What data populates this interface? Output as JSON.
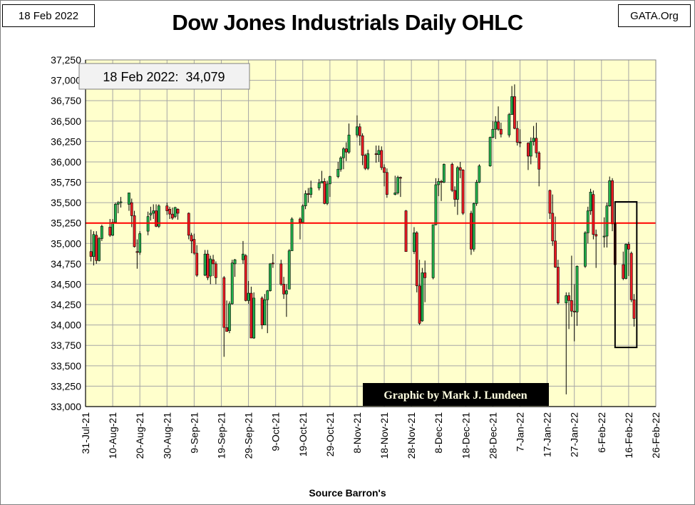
{
  "header": {
    "date_label": "18 Feb 2022",
    "site_label": "GATA.Org",
    "title": "Dow Jones Industrials Daily OHLC"
  },
  "annotation": {
    "close_label": "18 Feb 2022:  34,079",
    "credit_label": "Graphic by Mark J. Lundeen",
    "source_label": "Source  Barron's"
  },
  "colors": {
    "plot_background": "#ffffcc",
    "grid": "#a6a6a6",
    "up_candle": "#22b14c",
    "down_candle": "#ed1c24",
    "reference_line": "#ff0000",
    "credit_background": "#000000",
    "credit_text": "#ffffe0"
  },
  "chart_data": {
    "type": "ohlc-candlestick",
    "title": "Dow Jones Industrials Daily OHLC",
    "xlabel": "",
    "ylabel": "",
    "ylim": [
      33000,
      37250
    ],
    "yticks": [
      33000,
      33250,
      33500,
      33750,
      34000,
      34250,
      34500,
      34750,
      35000,
      35250,
      35500,
      35750,
      36000,
      36250,
      36500,
      36750,
      37000,
      37250
    ],
    "ytick_labels": [
      "33,000",
      "33,250",
      "33,500",
      "33,750",
      "34,000",
      "34,250",
      "34,500",
      "34,750",
      "35,000",
      "35,250",
      "35,500",
      "35,750",
      "36,000",
      "36,250",
      "36,500",
      "36,750",
      "37,000",
      "37,250"
    ],
    "xlim": [
      "2021-07-31",
      "2022-02-26"
    ],
    "xtick_labels": [
      "31-Jul-21",
      "10-Aug-21",
      "20-Aug-21",
      "30-Aug-21",
      "9-Sep-21",
      "19-Sep-21",
      "29-Sep-21",
      "9-Oct-21",
      "19-Oct-21",
      "29-Oct-21",
      "8-Nov-21",
      "18-Nov-21",
      "28-Nov-21",
      "8-Dec-21",
      "18-Dec-21",
      "28-Dec-21",
      "7-Jan-22",
      "17-Jan-22",
      "27-Jan-22",
      "6-Feb-22",
      "16-Feb-22",
      "26-Feb-22"
    ],
    "grid": true,
    "reference_line": 35250,
    "highlight_box": {
      "from": "2022-02-11",
      "to": "2022-02-19",
      "low": 33725,
      "high": 35510
    },
    "candles": [
      {
        "d": "2021-08-02",
        "o": 34900,
        "h": 35170,
        "l": 34780,
        "c": 34840
      },
      {
        "d": "2021-08-03",
        "o": 34840,
        "h": 35150,
        "l": 34730,
        "c": 35110
      },
      {
        "d": "2021-08-04",
        "o": 35100,
        "h": 35150,
        "l": 34750,
        "c": 34790
      },
      {
        "d": "2021-08-05",
        "o": 34790,
        "h": 35080,
        "l": 34780,
        "c": 35060
      },
      {
        "d": "2021-08-06",
        "o": 35060,
        "h": 35230,
        "l": 35030,
        "c": 35210
      },
      {
        "d": "2021-08-09",
        "o": 35200,
        "h": 35300,
        "l": 35080,
        "c": 35100
      },
      {
        "d": "2021-08-10",
        "o": 35100,
        "h": 35300,
        "l": 35090,
        "c": 35260
      },
      {
        "d": "2021-08-11",
        "o": 35260,
        "h": 35500,
        "l": 35250,
        "c": 35480
      },
      {
        "d": "2021-08-12",
        "o": 35480,
        "h": 35520,
        "l": 35370,
        "c": 35500
      },
      {
        "d": "2021-08-13",
        "o": 35500,
        "h": 35570,
        "l": 35440,
        "c": 35510
      },
      {
        "d": "2021-08-16",
        "o": 35480,
        "h": 35620,
        "l": 35400,
        "c": 35620
      },
      {
        "d": "2021-08-17",
        "o": 35500,
        "h": 35550,
        "l": 35200,
        "c": 35340
      },
      {
        "d": "2021-08-18",
        "o": 35340,
        "h": 35400,
        "l": 34950,
        "c": 34960
      },
      {
        "d": "2021-08-19",
        "o": 34900,
        "h": 35050,
        "l": 34690,
        "c": 34890
      },
      {
        "d": "2021-08-20",
        "o": 34890,
        "h": 35150,
        "l": 34860,
        "c": 35120
      },
      {
        "d": "2021-08-23",
        "o": 35150,
        "h": 35390,
        "l": 35100,
        "c": 35330
      },
      {
        "d": "2021-08-24",
        "o": 35350,
        "h": 35450,
        "l": 35280,
        "c": 35370
      },
      {
        "d": "2021-08-25",
        "o": 35370,
        "h": 35480,
        "l": 35300,
        "c": 35400
      },
      {
        "d": "2021-08-26",
        "o": 35400,
        "h": 35480,
        "l": 35200,
        "c": 35210
      },
      {
        "d": "2021-08-27",
        "o": 35210,
        "h": 35480,
        "l": 35190,
        "c": 35460
      },
      {
        "d": "2021-08-30",
        "o": 35460,
        "h": 35500,
        "l": 35350,
        "c": 35400
      },
      {
        "d": "2021-08-31",
        "o": 35420,
        "h": 35450,
        "l": 35300,
        "c": 35360
      },
      {
        "d": "2021-09-01",
        "o": 35360,
        "h": 35440,
        "l": 35290,
        "c": 35310
      },
      {
        "d": "2021-09-02",
        "o": 35330,
        "h": 35450,
        "l": 35310,
        "c": 35440
      },
      {
        "d": "2021-09-03",
        "o": 35420,
        "h": 35430,
        "l": 35290,
        "c": 35370
      },
      {
        "d": "2021-09-07",
        "o": 35370,
        "h": 35380,
        "l": 35050,
        "c": 35100
      },
      {
        "d": "2021-09-08",
        "o": 35100,
        "h": 35130,
        "l": 34880,
        "c": 35030
      },
      {
        "d": "2021-09-09",
        "o": 35050,
        "h": 35120,
        "l": 34860,
        "c": 34880
      },
      {
        "d": "2021-09-10",
        "o": 34880,
        "h": 34980,
        "l": 34590,
        "c": 34610
      },
      {
        "d": "2021-09-13",
        "o": 34610,
        "h": 34920,
        "l": 34600,
        "c": 34870
      },
      {
        "d": "2021-09-14",
        "o": 34870,
        "h": 34920,
        "l": 34550,
        "c": 34580
      },
      {
        "d": "2021-09-15",
        "o": 34600,
        "h": 34850,
        "l": 34500,
        "c": 34810
      },
      {
        "d": "2021-09-16",
        "o": 34800,
        "h": 34860,
        "l": 34600,
        "c": 34750
      },
      {
        "d": "2021-09-17",
        "o": 34750,
        "h": 34780,
        "l": 34500,
        "c": 34580
      },
      {
        "d": "2021-09-20",
        "o": 34580,
        "h": 34600,
        "l": 33610,
        "c": 33970
      },
      {
        "d": "2021-09-21",
        "o": 33970,
        "h": 34300,
        "l": 33920,
        "c": 33920
      },
      {
        "d": "2021-09-22",
        "o": 33930,
        "h": 34290,
        "l": 33900,
        "c": 34260
      },
      {
        "d": "2021-09-23",
        "o": 34260,
        "h": 34800,
        "l": 34250,
        "c": 34760
      },
      {
        "d": "2021-09-24",
        "o": 34750,
        "h": 34810,
        "l": 34590,
        "c": 34800
      },
      {
        "d": "2021-09-27",
        "o": 34800,
        "h": 35030,
        "l": 34750,
        "c": 34870
      },
      {
        "d": "2021-09-28",
        "o": 34850,
        "h": 34870,
        "l": 34290,
        "c": 34300
      },
      {
        "d": "2021-09-29",
        "o": 34300,
        "h": 34540,
        "l": 34260,
        "c": 34390
      },
      {
        "d": "2021-09-30",
        "o": 34390,
        "h": 34470,
        "l": 33840,
        "c": 33840
      },
      {
        "d": "2021-10-01",
        "o": 33840,
        "h": 34400,
        "l": 33830,
        "c": 34330
      },
      {
        "d": "2021-10-04",
        "o": 34330,
        "h": 34350,
        "l": 33950,
        "c": 34000
      },
      {
        "d": "2021-10-05",
        "o": 34000,
        "h": 34380,
        "l": 34000,
        "c": 34310
      },
      {
        "d": "2021-10-06",
        "o": 34310,
        "h": 34430,
        "l": 33900,
        "c": 34420
      },
      {
        "d": "2021-10-07",
        "o": 34420,
        "h": 34760,
        "l": 34410,
        "c": 34750
      },
      {
        "d": "2021-10-08",
        "o": 34760,
        "h": 34870,
        "l": 34700,
        "c": 34750
      },
      {
        "d": "2021-10-11",
        "o": 34750,
        "h": 34800,
        "l": 34480,
        "c": 34500
      },
      {
        "d": "2021-10-12",
        "o": 34500,
        "h": 34590,
        "l": 34320,
        "c": 34380
      },
      {
        "d": "2021-10-13",
        "o": 34380,
        "h": 34500,
        "l": 34100,
        "c": 34420
      },
      {
        "d": "2021-10-14",
        "o": 34440,
        "h": 34930,
        "l": 34440,
        "c": 34910
      },
      {
        "d": "2021-10-15",
        "o": 34910,
        "h": 35320,
        "l": 34910,
        "c": 35300
      },
      {
        "d": "2021-10-18",
        "o": 35300,
        "h": 35320,
        "l": 35050,
        "c": 35260
      },
      {
        "d": "2021-10-19",
        "o": 35260,
        "h": 35480,
        "l": 35250,
        "c": 35460
      },
      {
        "d": "2021-10-20",
        "o": 35460,
        "h": 35650,
        "l": 35420,
        "c": 35610
      },
      {
        "d": "2021-10-21",
        "o": 35610,
        "h": 35680,
        "l": 35500,
        "c": 35600
      },
      {
        "d": "2021-10-22",
        "o": 35600,
        "h": 35770,
        "l": 35560,
        "c": 35680
      },
      {
        "d": "2021-10-25",
        "o": 35680,
        "h": 35790,
        "l": 35650,
        "c": 35740
      },
      {
        "d": "2021-10-26",
        "o": 35740,
        "h": 35890,
        "l": 35740,
        "c": 35760
      },
      {
        "d": "2021-10-27",
        "o": 35760,
        "h": 35800,
        "l": 35480,
        "c": 35490
      },
      {
        "d": "2021-10-28",
        "o": 35490,
        "h": 35770,
        "l": 35470,
        "c": 35730
      },
      {
        "d": "2021-10-29",
        "o": 35730,
        "h": 35830,
        "l": 35570,
        "c": 35820
      },
      {
        "d": "2021-11-01",
        "o": 35820,
        "h": 36000,
        "l": 35800,
        "c": 35910
      },
      {
        "d": "2021-11-02",
        "o": 35910,
        "h": 36070,
        "l": 35880,
        "c": 36050
      },
      {
        "d": "2021-11-03",
        "o": 36050,
        "h": 36180,
        "l": 35910,
        "c": 36160
      },
      {
        "d": "2021-11-04",
        "o": 36160,
        "h": 36240,
        "l": 36010,
        "c": 36120
      },
      {
        "d": "2021-11-05",
        "o": 36120,
        "h": 36470,
        "l": 36100,
        "c": 36330
      },
      {
        "d": "2021-11-08",
        "o": 36330,
        "h": 36570,
        "l": 36300,
        "c": 36430
      },
      {
        "d": "2021-11-09",
        "o": 36430,
        "h": 36470,
        "l": 36200,
        "c": 36320
      },
      {
        "d": "2021-11-10",
        "o": 36320,
        "h": 36350,
        "l": 35960,
        "c": 36080
      },
      {
        "d": "2021-11-11",
        "o": 36080,
        "h": 36100,
        "l": 35900,
        "c": 35920
      },
      {
        "d": "2021-11-12",
        "o": 35920,
        "h": 36150,
        "l": 35900,
        "c": 36100
      },
      {
        "d": "2021-11-15",
        "o": 36100,
        "h": 36200,
        "l": 35990,
        "c": 36090
      },
      {
        "d": "2021-11-16",
        "o": 36090,
        "h": 36200,
        "l": 36000,
        "c": 36140
      },
      {
        "d": "2021-11-17",
        "o": 36140,
        "h": 36190,
        "l": 35900,
        "c": 35930
      },
      {
        "d": "2021-11-18",
        "o": 35930,
        "h": 35970,
        "l": 35700,
        "c": 35870
      },
      {
        "d": "2021-11-19",
        "o": 35870,
        "h": 35920,
        "l": 35560,
        "c": 35600
      },
      {
        "d": "2021-11-22",
        "o": 35600,
        "h": 35830,
        "l": 35590,
        "c": 35620
      },
      {
        "d": "2021-11-23",
        "o": 35620,
        "h": 35830,
        "l": 35600,
        "c": 35810
      },
      {
        "d": "2021-11-24",
        "o": 35810,
        "h": 35820,
        "l": 35570,
        "c": 35800
      },
      {
        "d": "2021-11-26",
        "o": 35400,
        "h": 35410,
        "l": 34900,
        "c": 34900
      },
      {
        "d": "2021-11-29",
        "o": 34900,
        "h": 35200,
        "l": 34870,
        "c": 35130
      },
      {
        "d": "2021-11-30",
        "o": 35130,
        "h": 35150,
        "l": 34400,
        "c": 34480
      },
      {
        "d": "2021-12-01",
        "o": 34480,
        "h": 34800,
        "l": 34000,
        "c": 34020
      },
      {
        "d": "2021-12-02",
        "o": 34050,
        "h": 34700,
        "l": 34040,
        "c": 34640
      },
      {
        "d": "2021-12-03",
        "o": 34640,
        "h": 34790,
        "l": 34280,
        "c": 34580
      },
      {
        "d": "2021-12-06",
        "o": 34580,
        "h": 35200,
        "l": 34560,
        "c": 35230
      },
      {
        "d": "2021-12-07",
        "o": 35230,
        "h": 35800,
        "l": 35220,
        "c": 35720
      },
      {
        "d": "2021-12-08",
        "o": 35720,
        "h": 35800,
        "l": 35580,
        "c": 35760
      },
      {
        "d": "2021-12-09",
        "o": 35760,
        "h": 35780,
        "l": 35520,
        "c": 35750
      },
      {
        "d": "2021-12-10",
        "o": 35750,
        "h": 35980,
        "l": 35740,
        "c": 35970
      },
      {
        "d": "2021-12-13",
        "o": 35970,
        "h": 35990,
        "l": 35630,
        "c": 35650
      },
      {
        "d": "2021-12-14",
        "o": 35650,
        "h": 35700,
        "l": 35450,
        "c": 35540
      },
      {
        "d": "2021-12-15",
        "o": 35540,
        "h": 35950,
        "l": 35350,
        "c": 35930
      },
      {
        "d": "2021-12-16",
        "o": 35930,
        "h": 36000,
        "l": 35800,
        "c": 35900
      },
      {
        "d": "2021-12-17",
        "o": 35900,
        "h": 35910,
        "l": 35350,
        "c": 35370
      },
      {
        "d": "2021-12-20",
        "o": 35370,
        "h": 35400,
        "l": 34860,
        "c": 34930
      },
      {
        "d": "2021-12-21",
        "o": 34930,
        "h": 35500,
        "l": 34900,
        "c": 35490
      },
      {
        "d": "2021-12-22",
        "o": 35490,
        "h": 35780,
        "l": 35460,
        "c": 35750
      },
      {
        "d": "2021-12-23",
        "o": 35750,
        "h": 35970,
        "l": 35740,
        "c": 35950
      },
      {
        "d": "2021-12-27",
        "o": 35950,
        "h": 36310,
        "l": 35940,
        "c": 36300
      },
      {
        "d": "2021-12-28",
        "o": 36300,
        "h": 36500,
        "l": 36290,
        "c": 36400
      },
      {
        "d": "2021-12-29",
        "o": 36400,
        "h": 36560,
        "l": 36280,
        "c": 36490
      },
      {
        "d": "2021-12-30",
        "o": 36490,
        "h": 36680,
        "l": 36380,
        "c": 36400
      },
      {
        "d": "2021-12-31",
        "o": 36400,
        "h": 36480,
        "l": 36300,
        "c": 36340
      },
      {
        "d": "2022-01-03",
        "o": 36330,
        "h": 36600,
        "l": 36300,
        "c": 36580
      },
      {
        "d": "2022-01-04",
        "o": 36580,
        "h": 36930,
        "l": 36580,
        "c": 36800
      },
      {
        "d": "2022-01-05",
        "o": 36800,
        "h": 36950,
        "l": 36400,
        "c": 36410
      },
      {
        "d": "2022-01-06",
        "o": 36410,
        "h": 36500,
        "l": 36200,
        "c": 36240
      },
      {
        "d": "2022-01-07",
        "o": 36240,
        "h": 36400,
        "l": 36180,
        "c": 36230
      },
      {
        "d": "2022-01-10",
        "o": 36230,
        "h": 36240,
        "l": 35900,
        "c": 36070
      },
      {
        "d": "2022-01-11",
        "o": 36070,
        "h": 36300,
        "l": 35970,
        "c": 36250
      },
      {
        "d": "2022-01-12",
        "o": 36250,
        "h": 36440,
        "l": 36200,
        "c": 36290
      },
      {
        "d": "2022-01-13",
        "o": 36290,
        "h": 36480,
        "l": 36050,
        "c": 36110
      },
      {
        "d": "2022-01-14",
        "o": 36110,
        "h": 36130,
        "l": 35700,
        "c": 35910
      },
      {
        "d": "2022-01-18",
        "o": 35650,
        "h": 35660,
        "l": 35300,
        "c": 35370
      },
      {
        "d": "2022-01-19",
        "o": 35370,
        "h": 35600,
        "l": 34970,
        "c": 35030
      },
      {
        "d": "2022-01-20",
        "o": 35030,
        "h": 35330,
        "l": 34700,
        "c": 34710
      },
      {
        "d": "2022-01-21",
        "o": 34710,
        "h": 34800,
        "l": 34250,
        "c": 34270
      },
      {
        "d": "2022-01-24",
        "o": 34270,
        "h": 34400,
        "l": 33150,
        "c": 34360
      },
      {
        "d": "2022-01-25",
        "o": 34360,
        "h": 34400,
        "l": 33950,
        "c": 34300
      },
      {
        "d": "2022-01-26",
        "o": 34300,
        "h": 34850,
        "l": 34100,
        "c": 34170
      },
      {
        "d": "2022-01-27",
        "o": 34170,
        "h": 34500,
        "l": 33800,
        "c": 34160
      },
      {
        "d": "2022-01-28",
        "o": 34160,
        "h": 34730,
        "l": 33990,
        "c": 34720
      },
      {
        "d": "2022-01-31",
        "o": 34720,
        "h": 35150,
        "l": 34700,
        "c": 35130
      },
      {
        "d": "2022-02-01",
        "o": 35130,
        "h": 35450,
        "l": 35000,
        "c": 35400
      },
      {
        "d": "2022-02-02",
        "o": 35400,
        "h": 35670,
        "l": 35350,
        "c": 35630
      },
      {
        "d": "2022-02-03",
        "o": 35600,
        "h": 35650,
        "l": 35050,
        "c": 35110
      },
      {
        "d": "2022-02-04",
        "o": 35110,
        "h": 35170,
        "l": 34700,
        "c": 35090
      },
      {
        "d": "2022-02-07",
        "o": 35090,
        "h": 35320,
        "l": 34950,
        "c": 35090
      },
      {
        "d": "2022-02-08",
        "o": 35090,
        "h": 35500,
        "l": 34950,
        "c": 35460
      },
      {
        "d": "2022-02-09",
        "o": 35460,
        "h": 35820,
        "l": 35450,
        "c": 35770
      },
      {
        "d": "2022-02-10",
        "o": 35770,
        "h": 35800,
        "l": 35150,
        "c": 35240
      },
      {
        "d": "2022-02-11",
        "o": 35240,
        "h": 35300,
        "l": 34640,
        "c": 34740
      },
      {
        "d": "2022-02-14",
        "o": 34740,
        "h": 34900,
        "l": 34550,
        "c": 34570
      },
      {
        "d": "2022-02-15",
        "o": 34570,
        "h": 35000,
        "l": 34560,
        "c": 34990
      },
      {
        "d": "2022-02-16",
        "o": 34990,
        "h": 35020,
        "l": 34600,
        "c": 34930
      },
      {
        "d": "2022-02-17",
        "o": 34880,
        "h": 34900,
        "l": 34280,
        "c": 34310
      },
      {
        "d": "2022-02-18",
        "o": 34310,
        "h": 34380,
        "l": 33980,
        "c": 34080
      }
    ]
  }
}
